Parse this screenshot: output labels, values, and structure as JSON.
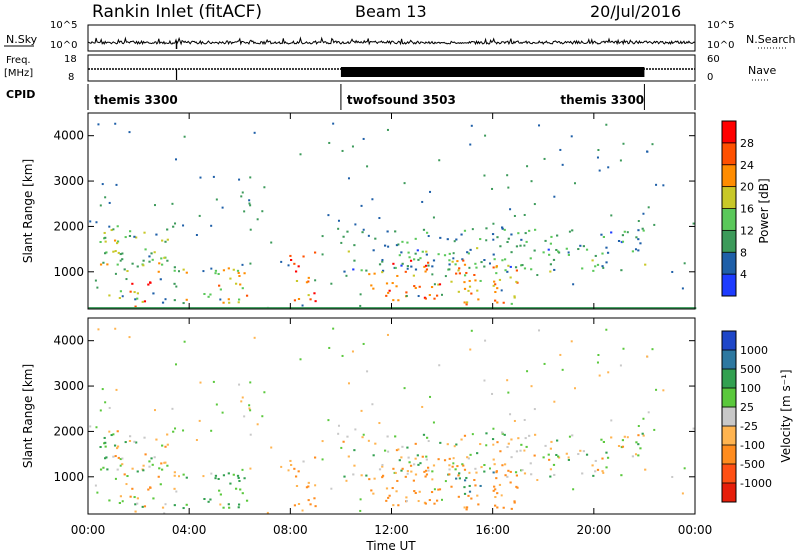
{
  "header": {
    "station": "Rankin Inlet (fitACF)",
    "beam": "Beam 13",
    "date": "20/Jul/2016"
  },
  "noise_panel": {
    "left_label": "N.Sky",
    "right_label": "N.Search",
    "left_ticks": [
      "10^5",
      "10^0"
    ],
    "right_ticks": [
      "10^5",
      "10^0"
    ]
  },
  "freq_panel": {
    "left_label_1": "Freq.",
    "left_label_2": "[MHz]",
    "right_label": "Nave",
    "left_ticks": [
      "18",
      "8"
    ],
    "right_ticks": [
      "60",
      "0"
    ]
  },
  "cpid_panel": {
    "label": "CPID",
    "segments": [
      {
        "name": "themis 3300",
        "start_hour": 0,
        "end_hour": 10
      },
      {
        "name": "twofsound 3503",
        "start_hour": 10,
        "end_hour": 22
      },
      {
        "name": "themis 3300",
        "start_hour": 22,
        "end_hour": 24
      }
    ]
  },
  "x_axis": {
    "label": "Time UT",
    "ticks": [
      "00:00",
      "04:00",
      "08:00",
      "12:00",
      "16:00",
      "20:00",
      "00:00"
    ],
    "range_hours": [
      0,
      24
    ]
  },
  "power_panel": {
    "ylabel": "Slant Range [km]",
    "colorbar_label": "Power [dB]",
    "colorbar_ticks": [
      "4",
      "8",
      "12",
      "16",
      "20",
      "24",
      "28"
    ],
    "colorbar_colors": [
      "#1e3cff",
      "#1e5fa8",
      "#3c9a5a",
      "#5ac85a",
      "#c8c828",
      "#ff8c00",
      "#ff5000",
      "#ff0000"
    ]
  },
  "velocity_panel": {
    "ylabel": "Slant Range [km]",
    "colorbar_label": "Velocity [m s⁻¹]",
    "colorbar_ticks": [
      "1000",
      "500",
      "100",
      "25",
      "-25",
      "-100",
      "-500",
      "-1000"
    ],
    "colorbar_colors": [
      "#1e46c8",
      "#2d78a0",
      "#32a050",
      "#5ac83c",
      "#c8c8c8",
      "#ffb450",
      "#ff8c1e",
      "#ff5014",
      "#e61e0a"
    ]
  },
  "chart_data": {
    "type": "heatmap",
    "title": "Rankin Inlet (fitACF)",
    "xlabel": "Time UT",
    "ylabel": "Slant Range [km]",
    "xlim_hours": [
      0,
      24
    ],
    "ylim_km": [
      180,
      4500
    ],
    "y_ticks_km": [
      1000,
      2000,
      3000,
      4000
    ],
    "scatter_regions": [
      {
        "t0": 0.4,
        "t1": 3.4,
        "r0": 300,
        "r1": 2100,
        "power_db": 14,
        "velocity": 20
      },
      {
        "t0": 1.6,
        "t1": 2.6,
        "r0": 250,
        "r1": 800,
        "power_db": 30,
        "velocity": -200
      },
      {
        "t0": 3.7,
        "t1": 6.4,
        "r0": 250,
        "r1": 1100,
        "power_db": 18,
        "velocity": 150
      },
      {
        "t0": 7.9,
        "t1": 9.0,
        "r0": 250,
        "r1": 1500,
        "power_db": 26,
        "velocity": -150
      },
      {
        "t0": 10.0,
        "t1": 22.0,
        "r0": 1000,
        "r1": 2000,
        "power_db": 10,
        "velocity": 0
      },
      {
        "t0": 11.0,
        "t1": 17.0,
        "r0": 300,
        "r1": 1300,
        "power_db": 22,
        "velocity": -200
      },
      {
        "t0": 14.5,
        "t1": 16.0,
        "r0": 600,
        "r1": 1200,
        "power_db": 20,
        "velocity": 500
      }
    ]
  }
}
